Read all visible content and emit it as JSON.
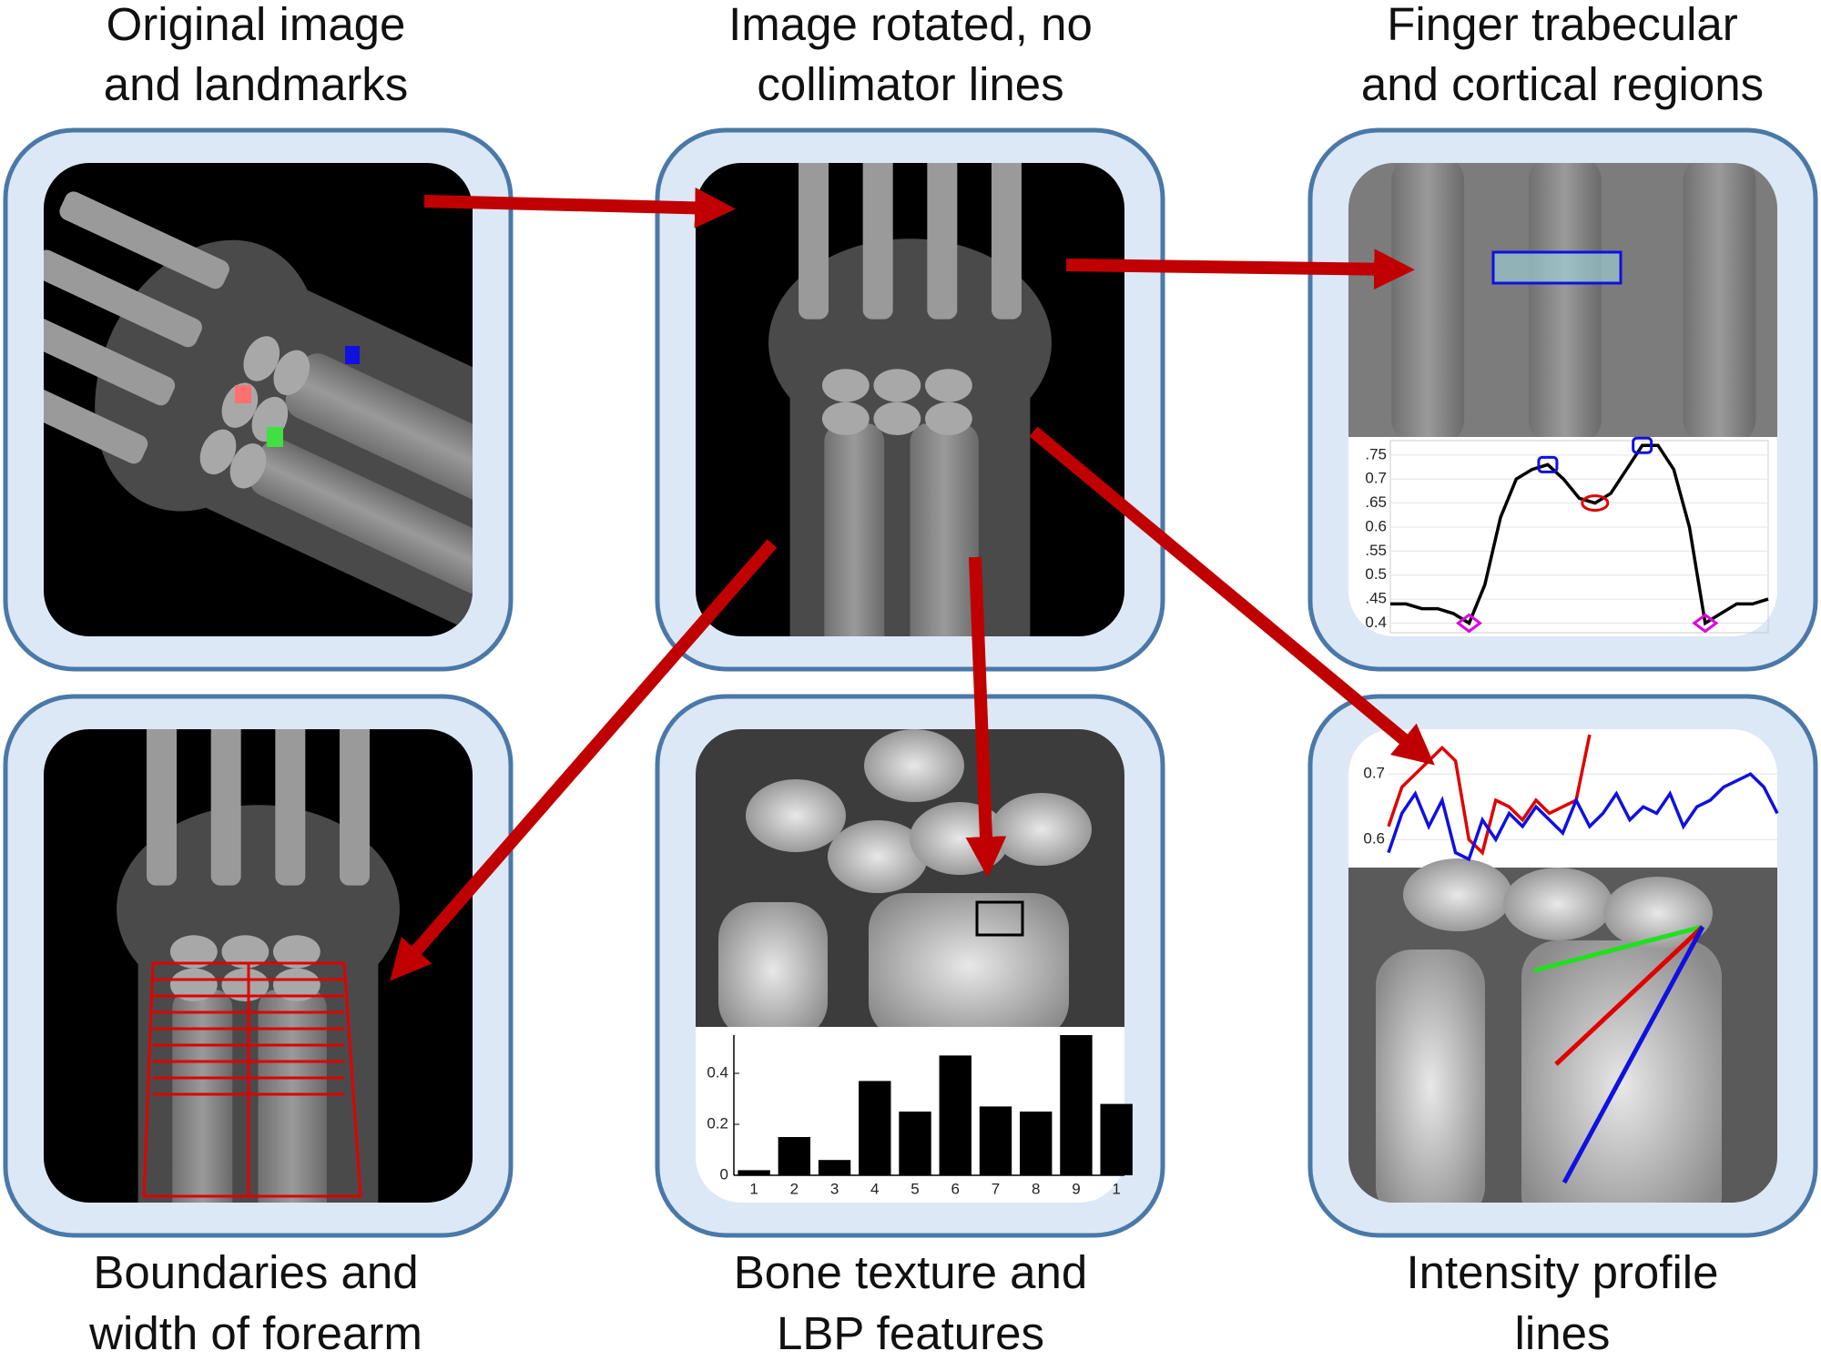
{
  "panels": [
    {
      "caption": [
        "Original image",
        "and landmarks"
      ]
    },
    {
      "caption": [
        "Image rotated, no",
        "collimator lines"
      ]
    },
    {
      "caption": [
        "Finger trabecular",
        "and cortical regions"
      ]
    },
    {
      "caption": [
        "Boundaries and",
        "width of forearm"
      ]
    },
    {
      "caption": [
        "Bone texture and",
        "LBP features"
      ]
    },
    {
      "caption": [
        "Intensity profile",
        "lines"
      ]
    }
  ],
  "finger_profile": {
    "type": "line",
    "ylim": [
      0.38,
      0.78
    ],
    "yticks": [
      {
        "value": 0.4,
        "label": "0.4"
      },
      {
        "value": 0.45,
        "label": ".45"
      },
      {
        "value": 0.5,
        "label": "0.5"
      },
      {
        "value": 0.55,
        "label": ".55"
      },
      {
        "value": 0.6,
        "label": "0.6"
      },
      {
        "value": 0.65,
        "label": ".65"
      },
      {
        "value": 0.7,
        "label": "0.7"
      },
      {
        "value": 0.75,
        "label": ".75"
      }
    ],
    "series": [
      {
        "color": "#000000",
        "values": [
          0.44,
          0.44,
          0.43,
          0.43,
          0.42,
          0.4,
          0.48,
          0.62,
          0.7,
          0.72,
          0.73,
          0.7,
          0.66,
          0.65,
          0.67,
          0.72,
          0.77,
          0.77,
          0.72,
          0.6,
          0.4,
          0.42,
          0.44,
          0.44,
          0.45
        ]
      }
    ]
  },
  "lbp_chart": {
    "type": "bar",
    "categories": [
      "1",
      "2",
      "3",
      "4",
      "5",
      "6",
      "7",
      "8",
      "9",
      "1"
    ],
    "values": [
      0.02,
      0.15,
      0.06,
      0.37,
      0.25,
      0.47,
      0.27,
      0.25,
      0.55,
      0.28
    ],
    "color": "#000000",
    "ylim": [
      0,
      0.55
    ],
    "yticks": [
      0,
      0.2,
      0.4
    ]
  },
  "intensity_profile": {
    "type": "line",
    "ylim": [
      0.56,
      0.76
    ],
    "yticks": [
      0.6,
      0.7
    ],
    "series": [
      {
        "color": "#e00000",
        "values": [
          0.62,
          0.68,
          0.7,
          0.72,
          0.74,
          0.72,
          0.6,
          0.58,
          0.66,
          0.65,
          0.63,
          0.66,
          0.64,
          0.65,
          0.66,
          0.76,
          null,
          null,
          null,
          null,
          null,
          null,
          null,
          null,
          null,
          null,
          null,
          null,
          null,
          null
        ]
      },
      {
        "color": "#1010e0",
        "values": [
          0.58,
          0.64,
          0.67,
          0.62,
          0.66,
          0.58,
          0.57,
          0.63,
          0.6,
          0.64,
          0.62,
          0.65,
          0.63,
          0.61,
          0.66,
          0.62,
          0.64,
          0.67,
          0.63,
          0.65,
          0.64,
          0.67,
          0.62,
          0.65,
          0.66,
          0.68,
          0.69,
          0.7,
          0.68,
          0.64
        ]
      }
    ]
  }
}
